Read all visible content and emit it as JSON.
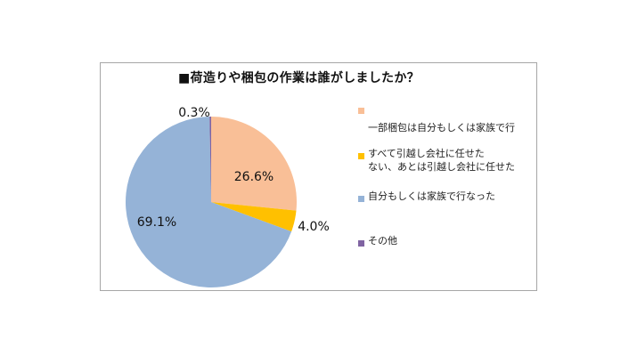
{
  "chart_data": {
    "type": "pie",
    "title": "■荷造りや梱包の作業は誰がしましたか？",
    "categories": [
      "一部梱包は自分もしくは家族で行ない、あとは引越し会社に任せた",
      "すべて引越し会社に任せた",
      "自分もしくは家族で行なった",
      "その他"
    ],
    "legend_lines": [
      [
        "一部梱包は自分もしくは家族で行",
        "ない、あとは引越し会社に任せた"
      ],
      [
        "すべて引越し会社に任せた"
      ],
      [
        "自分もしくは家族で行なった"
      ],
      [
        "その他"
      ]
    ],
    "values": [
      26.6,
      4.0,
      69.1,
      0.3
    ],
    "labels": [
      "26.6%",
      "4.0%",
      "69.1%",
      "0.3%"
    ],
    "colors": [
      "#f9bf97",
      "#ffc000",
      "#95b3d7",
      "#8064a2"
    ],
    "start_angle": "12 o'clock",
    "direction": "clockwise",
    "legend_position": "right"
  }
}
